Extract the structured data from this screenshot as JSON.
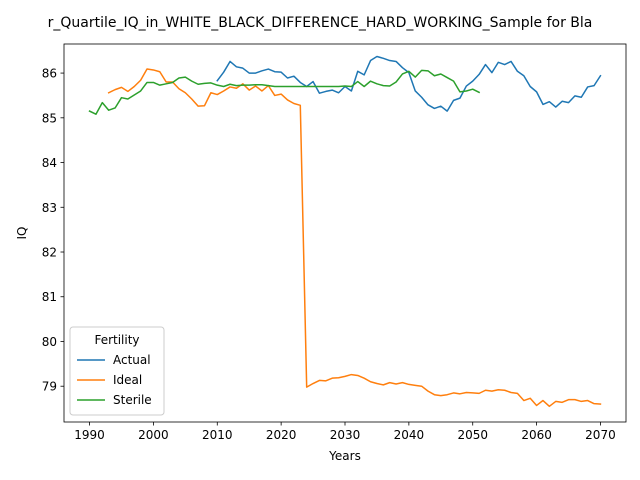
{
  "chart_data": {
    "type": "line",
    "title": "r_Quartile_IQ_in_WHITE_BLACK_DIFFERENCE_HARD_WORKING_Sample for Bla",
    "xlabel": "Years",
    "ylabel": "IQ",
    "xlim": [
      1986,
      2074
    ],
    "ylim": [
      78.2,
      86.65
    ],
    "x_ticks": [
      1990,
      2000,
      2010,
      2020,
      2030,
      2040,
      2050,
      2060,
      2070
    ],
    "y_ticks": [
      79,
      80,
      81,
      82,
      83,
      84,
      85,
      86
    ],
    "grid": false,
    "legend": {
      "title": "Fertility",
      "placement": "lower-left"
    },
    "series": [
      {
        "name": "Actual",
        "color": "#1f77b4",
        "x": [
          2010,
          2011,
          2012,
          2013,
          2014,
          2015,
          2016,
          2017,
          2018,
          2019,
          2020,
          2021,
          2022,
          2023,
          2024,
          2025,
          2026,
          2027,
          2028,
          2029,
          2030,
          2031,
          2032,
          2033,
          2034,
          2035,
          2036,
          2037,
          2038,
          2039,
          2040,
          2041,
          2042,
          2043,
          2044,
          2045,
          2046,
          2047,
          2048,
          2049,
          2050,
          2051,
          2052,
          2053,
          2054,
          2055,
          2056,
          2057,
          2058,
          2059,
          2060,
          2061,
          2062,
          2063,
          2064,
          2065,
          2066,
          2067,
          2068,
          2069,
          2070
        ],
        "values": [
          85.83,
          86.02,
          86.26,
          86.14,
          86.11,
          86.0,
          86.0,
          86.05,
          86.09,
          86.03,
          86.02,
          85.89,
          85.93,
          85.79,
          85.7,
          85.81,
          85.55,
          85.59,
          85.62,
          85.56,
          85.7,
          85.6,
          86.04,
          85.96,
          86.28,
          86.37,
          86.33,
          86.28,
          86.26,
          86.12,
          86.01,
          85.6,
          85.46,
          85.29,
          85.21,
          85.26,
          85.15,
          85.39,
          85.44,
          85.71,
          85.82,
          85.97,
          86.19,
          86.01,
          86.24,
          86.19,
          86.26,
          86.04,
          85.94,
          85.7,
          85.58,
          85.3,
          85.36,
          85.24,
          85.37,
          85.34,
          85.49,
          85.46,
          85.69,
          85.72,
          85.94
        ]
      },
      {
        "name": "Ideal",
        "color": "#ff7f0e",
        "x": [
          1993,
          1994,
          1995,
          1996,
          1997,
          1998,
          1999,
          2000,
          2001,
          2002,
          2003,
          2004,
          2005,
          2006,
          2007,
          2008,
          2009,
          2010,
          2011,
          2012,
          2013,
          2014,
          2015,
          2016,
          2017,
          2018,
          2019,
          2020,
          2021,
          2022,
          2023,
          2024,
          2025,
          2026,
          2027,
          2028,
          2029,
          2030,
          2031,
          2032,
          2033,
          2034,
          2035,
          2036,
          2037,
          2038,
          2039,
          2040,
          2041,
          2042,
          2043,
          2044,
          2045,
          2046,
          2047,
          2048,
          2049,
          2050,
          2051,
          2052,
          2053,
          2054,
          2055,
          2056,
          2057,
          2058,
          2059,
          2060,
          2061,
          2062,
          2063,
          2064,
          2065,
          2066,
          2067,
          2068,
          2069,
          2070
        ],
        "values": [
          85.56,
          85.63,
          85.68,
          85.59,
          85.7,
          85.84,
          86.09,
          86.07,
          86.03,
          85.8,
          85.8,
          85.65,
          85.56,
          85.42,
          85.26,
          85.27,
          85.56,
          85.52,
          85.6,
          85.69,
          85.66,
          85.76,
          85.62,
          85.71,
          85.6,
          85.72,
          85.5,
          85.53,
          85.4,
          85.32,
          85.28,
          78.98,
          79.06,
          79.13,
          79.12,
          79.18,
          79.19,
          79.22,
          79.26,
          79.24,
          79.18,
          79.1,
          79.06,
          79.03,
          79.08,
          79.05,
          79.08,
          79.04,
          79.02,
          79.0,
          78.89,
          78.81,
          78.79,
          78.81,
          78.85,
          78.83,
          78.86,
          78.85,
          78.84,
          78.91,
          78.89,
          78.92,
          78.91,
          78.86,
          78.84,
          78.68,
          78.73,
          78.57,
          78.68,
          78.55,
          78.66,
          78.64,
          78.7,
          78.7,
          78.66,
          78.68,
          78.61,
          78.6
        ]
      },
      {
        "name": "Sterile",
        "color": "#2ca02c",
        "x": [
          1990,
          1991,
          1992,
          1993,
          1994,
          1995,
          1996,
          1997,
          1998,
          1999,
          2000,
          2001,
          2002,
          2003,
          2004,
          2005,
          2006,
          2007,
          2008,
          2009,
          2010,
          2011,
          2012,
          2013,
          2014,
          2015,
          2016,
          2017,
          2018,
          2019,
          2020,
          2021,
          2022,
          2023,
          2024,
          2025,
          2026,
          2027,
          2028,
          2029,
          2030,
          2031,
          2032,
          2033,
          2034,
          2035,
          2036,
          2037,
          2038,
          2039,
          2040,
          2041,
          2042,
          2043,
          2044,
          2045,
          2046,
          2047,
          2048,
          2049,
          2050,
          2051
        ],
        "values": [
          85.15,
          85.08,
          85.34,
          85.17,
          85.22,
          85.45,
          85.42,
          85.51,
          85.6,
          85.79,
          85.79,
          85.73,
          85.76,
          85.79,
          85.89,
          85.91,
          85.82,
          85.75,
          85.77,
          85.78,
          85.73,
          85.7,
          85.75,
          85.72,
          85.73,
          85.73,
          85.74,
          85.74,
          85.72,
          85.7,
          85.7,
          85.7,
          85.7,
          85.7,
          85.7,
          85.7,
          85.7,
          85.7,
          85.7,
          85.7,
          85.71,
          85.7,
          85.81,
          85.7,
          85.82,
          85.76,
          85.72,
          85.71,
          85.8,
          85.98,
          86.04,
          85.91,
          86.06,
          86.05,
          85.94,
          85.98,
          85.9,
          85.82,
          85.58,
          85.6,
          85.64,
          85.57
        ]
      }
    ]
  }
}
